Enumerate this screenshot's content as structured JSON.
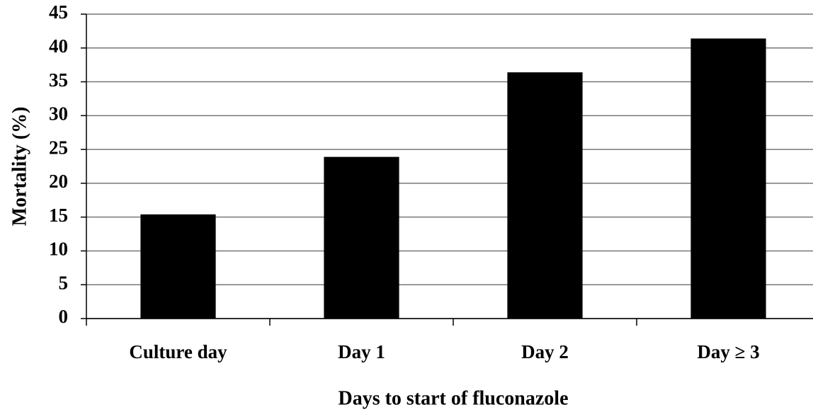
{
  "chart_data": {
    "type": "bar",
    "x_label": "Days to start of fluconazole",
    "y_label": "Mortality (%)",
    "categories": [
      "Culture day",
      "Day 1",
      "Day 2",
      "Day ≥ 3"
    ],
    "values": [
      15.4,
      23.9,
      36.4,
      41.4
    ],
    "color": "#000000",
    "ylim": [
      0,
      45
    ],
    "yticks": [
      0,
      5,
      10,
      15,
      20,
      25,
      30,
      35,
      40,
      45
    ],
    "grid": true
  }
}
